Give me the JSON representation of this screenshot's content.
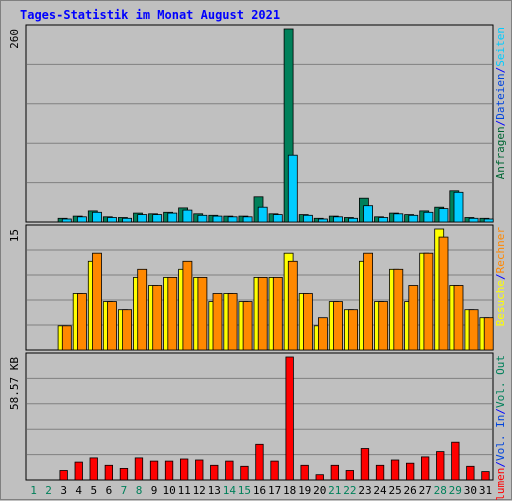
{
  "title": "Tages-Statistik im Monat August 2021",
  "chart_data": [
    {
      "type": "bar",
      "panel": "top",
      "ymax_label": "260",
      "ylim": [
        0,
        260
      ],
      "grid": true,
      "right_labels": [
        {
          "text": "Anfragen",
          "color": "#006633"
        },
        {
          "text": "/",
          "color": "#0000ff"
        },
        {
          "text": "Dateien",
          "color": "#0044dd"
        },
        {
          "text": "/",
          "color": "#0000ff"
        },
        {
          "text": "Seiten",
          "color": "#00ccff"
        }
      ],
      "series": [
        {
          "name": "Anfragen",
          "color": "#00805a",
          "values": [
            5,
            8,
            15,
            7,
            6,
            12,
            11,
            13,
            19,
            11,
            9,
            8,
            8,
            34,
            11,
            260,
            10,
            5,
            8,
            6,
            32,
            7,
            12,
            10,
            15,
            20,
            42,
            6,
            5
          ]
        },
        {
          "name": "Dateien",
          "color": "#00ccff",
          "values": [
            4,
            7,
            13,
            6,
            5,
            10,
            10,
            12,
            16,
            9,
            8,
            7,
            7,
            20,
            10,
            90,
            9,
            4,
            7,
            5,
            22,
            6,
            11,
            9,
            13,
            18,
            40,
            5,
            4
          ]
        }
      ]
    },
    {
      "type": "bar",
      "panel": "middle",
      "ymax_label": "15",
      "ylim": [
        0,
        15
      ],
      "grid": true,
      "right_labels": [
        {
          "text": "Besuche",
          "color": "#ffff00"
        },
        {
          "text": "/",
          "color": "#0000ff"
        },
        {
          "text": "Rechner",
          "color": "#ff8800"
        }
      ],
      "series": [
        {
          "name": "Besuche",
          "color": "#ffff00",
          "values": [
            3,
            7,
            11,
            6,
            5,
            9,
            8,
            9,
            10,
            9,
            6,
            7,
            6,
            9,
            9,
            12,
            7,
            3,
            6,
            5,
            11,
            6,
            10,
            6,
            12,
            15,
            8,
            5,
            4
          ]
        },
        {
          "name": "Rechner",
          "color": "#ff8800",
          "values": [
            3,
            7,
            12,
            6,
            5,
            10,
            8,
            9,
            11,
            9,
            7,
            7,
            6,
            9,
            9,
            11,
            7,
            4,
            6,
            5,
            12,
            6,
            10,
            8,
            12,
            14,
            8,
            5,
            4
          ]
        }
      ]
    },
    {
      "type": "bar",
      "panel": "bottom",
      "ymax_label": "58.57 KB",
      "ylim": [
        0,
        58.57
      ],
      "grid": true,
      "right_labels": [
        {
          "text": "Volumen",
          "color": "#ff0000"
        },
        {
          "text": "/",
          "color": "#0000ff"
        },
        {
          "text": "Vol. In",
          "color": "#0044dd"
        },
        {
          "text": "/",
          "color": "#0000ff"
        },
        {
          "text": "Vol. Out",
          "color": "#00805a"
        }
      ],
      "series": [
        {
          "name": "Volumen",
          "color": "#ff0000",
          "values": [
            4.5,
            8.5,
            10.5,
            7,
            5.5,
            10.5,
            9,
            9,
            10,
            9.5,
            7,
            9,
            6.5,
            17,
            9,
            58.57,
            7,
            2.5,
            7,
            4.5,
            15,
            7,
            9.5,
            8,
            11,
            13.5,
            18,
            6.5,
            4
          ]
        }
      ]
    }
  ],
  "x_labels": [
    {
      "text": "1",
      "weekend": true
    },
    {
      "text": "2",
      "weekend": true
    },
    {
      "text": "3",
      "weekend": false
    },
    {
      "text": "4",
      "weekend": false
    },
    {
      "text": "5",
      "weekend": false
    },
    {
      "text": "6",
      "weekend": false
    },
    {
      "text": "7",
      "weekend": true
    },
    {
      "text": "8",
      "weekend": true
    },
    {
      "text": "9",
      "weekend": false
    },
    {
      "text": "10",
      "weekend": false
    },
    {
      "text": "11",
      "weekend": false
    },
    {
      "text": "12",
      "weekend": false
    },
    {
      "text": "13",
      "weekend": false
    },
    {
      "text": "14",
      "weekend": true
    },
    {
      "text": "15",
      "weekend": true
    },
    {
      "text": "16",
      "weekend": false
    },
    {
      "text": "17",
      "weekend": false
    },
    {
      "text": "18",
      "weekend": false
    },
    {
      "text": "19",
      "weekend": false
    },
    {
      "text": "20",
      "weekend": false
    },
    {
      "text": "21",
      "weekend": true
    },
    {
      "text": "22",
      "weekend": true
    },
    {
      "text": "23",
      "weekend": false
    },
    {
      "text": "24",
      "weekend": false
    },
    {
      "text": "25",
      "weekend": false
    },
    {
      "text": "26",
      "weekend": false
    },
    {
      "text": "27",
      "weekend": false
    },
    {
      "text": "28",
      "weekend": true
    },
    {
      "text": "29",
      "weekend": true
    },
    {
      "text": "30",
      "weekend": false
    },
    {
      "text": "31",
      "weekend": false
    }
  ],
  "x_label_colors": {
    "weekday": "#000000",
    "weekend": "#00805a"
  },
  "first_data_day_index": 2
}
